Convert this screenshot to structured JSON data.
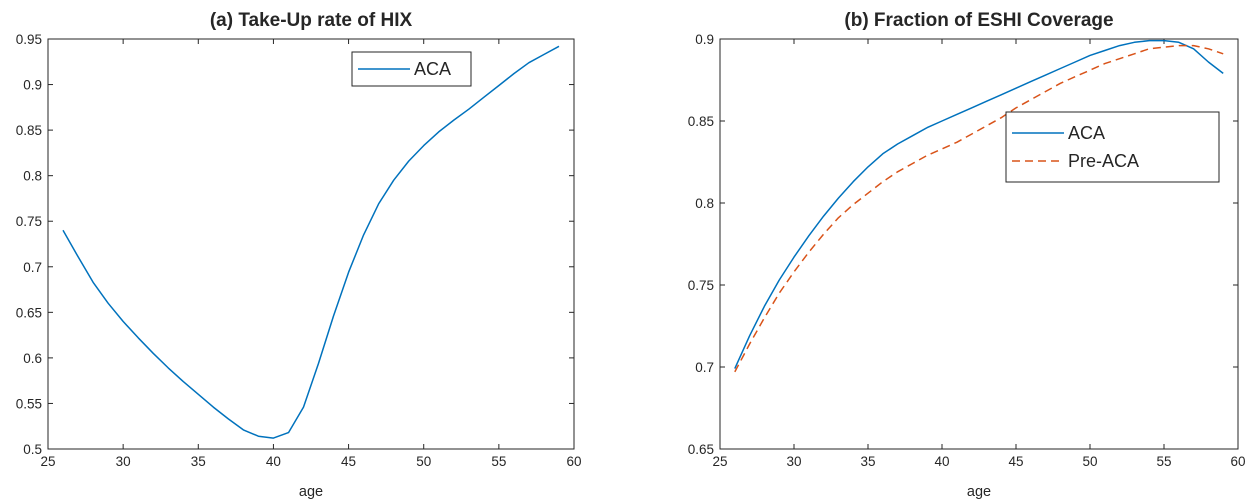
{
  "chart_data": [
    {
      "type": "line",
      "title": "(a) Take-Up rate of HIX",
      "xlabel": "age",
      "ylabel": "",
      "xlim": [
        25,
        60
      ],
      "ylim": [
        0.5,
        0.95
      ],
      "xticks": [
        "25",
        "30",
        "35",
        "40",
        "45",
        "50",
        "55",
        "60"
      ],
      "yticks": [
        "0.5",
        "0.55",
        "0.6",
        "0.65",
        "0.7",
        "0.75",
        "0.8",
        "0.85",
        "0.9",
        "0.95"
      ],
      "grid": false,
      "legend_position": "top-right",
      "series": [
        {
          "name": "ACA",
          "color": "#0072BD",
          "style": "solid",
          "x": [
            26,
            27,
            28,
            29,
            30,
            31,
            32,
            33,
            34,
            35,
            36,
            37,
            38,
            39,
            40,
            41,
            42,
            43,
            44,
            45,
            46,
            47,
            48,
            49,
            50,
            51,
            52,
            53,
            54,
            55,
            56,
            57,
            58,
            59
          ],
          "values": [
            0.74,
            0.711,
            0.683,
            0.66,
            0.64,
            0.622,
            0.605,
            0.589,
            0.574,
            0.56,
            0.546,
            0.533,
            0.521,
            0.514,
            0.512,
            0.518,
            0.546,
            0.594,
            0.646,
            0.694,
            0.735,
            0.769,
            0.795,
            0.816,
            0.833,
            0.848,
            0.861,
            0.873,
            0.886,
            0.899,
            0.912,
            0.924,
            0.933,
            0.942
          ]
        }
      ]
    },
    {
      "type": "line",
      "title": "(b) Fraction of ESHI Coverage",
      "xlabel": "age",
      "ylabel": "",
      "xlim": [
        25,
        60
      ],
      "ylim": [
        0.65,
        0.9
      ],
      "xticks": [
        "25",
        "30",
        "35",
        "40",
        "45",
        "50",
        "55",
        "60"
      ],
      "yticks": [
        "0.65",
        "0.7",
        "0.75",
        "0.8",
        "0.85",
        "0.9"
      ],
      "grid": false,
      "legend_position": "right",
      "series": [
        {
          "name": "ACA",
          "color": "#0072BD",
          "style": "solid",
          "x": [
            26,
            27,
            28,
            29,
            30,
            31,
            32,
            33,
            34,
            35,
            36,
            37,
            38,
            39,
            40,
            41,
            42,
            43,
            44,
            45,
            46,
            47,
            48,
            49,
            50,
            51,
            52,
            53,
            54,
            55,
            56,
            57,
            58,
            59
          ],
          "values": [
            0.699,
            0.719,
            0.737,
            0.753,
            0.767,
            0.78,
            0.792,
            0.803,
            0.813,
            0.822,
            0.83,
            0.836,
            0.841,
            0.846,
            0.85,
            0.854,
            0.858,
            0.862,
            0.866,
            0.87,
            0.874,
            0.878,
            0.882,
            0.886,
            0.89,
            0.893,
            0.896,
            0.898,
            0.899,
            0.899,
            0.898,
            0.894,
            0.886,
            0.879
          ]
        },
        {
          "name": "Pre-ACA",
          "color": "#D95319",
          "style": "dashed",
          "x": [
            26,
            27,
            28,
            29,
            30,
            31,
            32,
            33,
            34,
            35,
            36,
            37,
            38,
            39,
            40,
            41,
            42,
            43,
            44,
            45,
            46,
            47,
            48,
            49,
            50,
            51,
            52,
            53,
            54,
            55,
            56,
            57,
            58,
            59
          ],
          "values": [
            0.697,
            0.714,
            0.73,
            0.745,
            0.758,
            0.77,
            0.781,
            0.791,
            0.799,
            0.806,
            0.813,
            0.819,
            0.824,
            0.829,
            0.833,
            0.837,
            0.842,
            0.847,
            0.852,
            0.858,
            0.863,
            0.868,
            0.873,
            0.877,
            0.881,
            0.885,
            0.888,
            0.891,
            0.894,
            0.895,
            0.896,
            0.896,
            0.894,
            0.891
          ]
        }
      ]
    }
  ]
}
